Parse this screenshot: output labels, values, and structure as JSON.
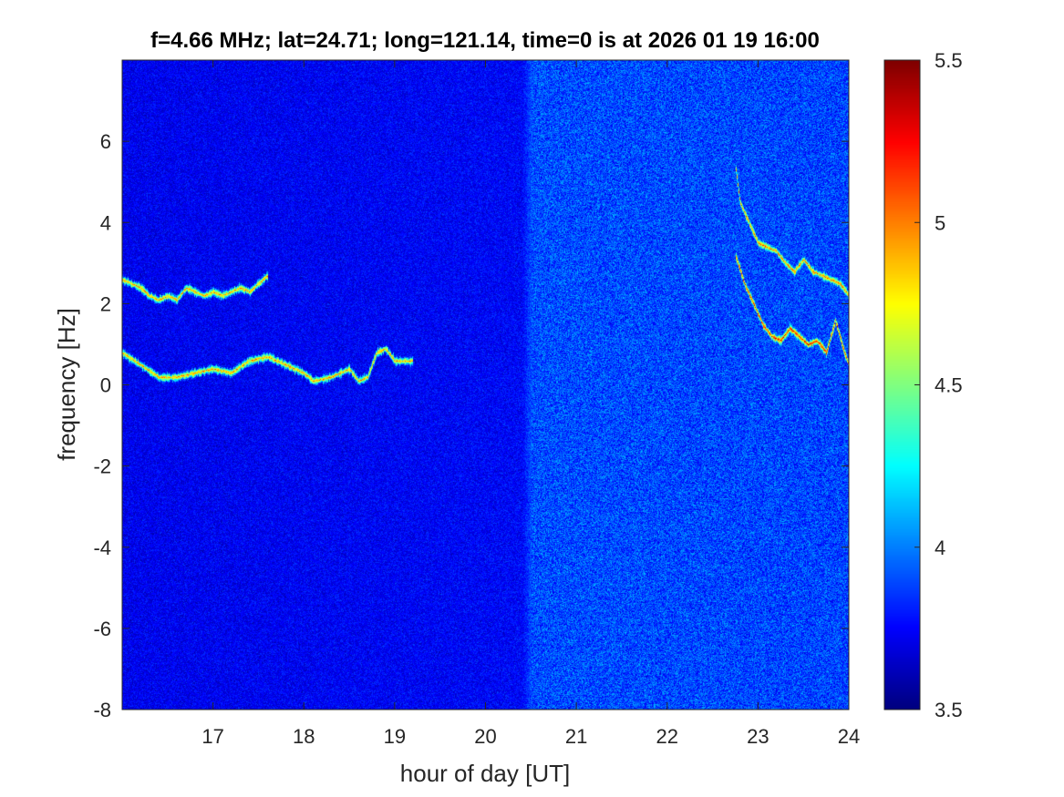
{
  "chart_data": {
    "type": "heatmap",
    "title": "f=4.66 MHz;  lat=24.71; long=121.14, time=0 is at 2026 01 19 16:00",
    "xlabel": "hour of day [UT]",
    "ylabel": "frequency [Hz]",
    "xlim": [
      16.0,
      24.0
    ],
    "ylim": [
      -8.0,
      8.0
    ],
    "x_ticks": [
      17,
      18,
      19,
      20,
      21,
      22,
      23,
      24
    ],
    "y_ticks": [
      -8,
      -6,
      -4,
      -2,
      0,
      2,
      4,
      6
    ],
    "x_tick_labels": [
      "17",
      "18",
      "19",
      "20",
      "21",
      "22",
      "23",
      "24"
    ],
    "y_tick_labels": [
      "-8",
      "-6",
      "-4",
      "-2",
      "0",
      "2",
      "4",
      "6"
    ],
    "colorbar": {
      "colormap": "jet",
      "clim": [
        3.5,
        5.5
      ],
      "ticks": [
        3.5,
        4.0,
        4.5,
        5.0,
        5.5
      ],
      "tick_labels": [
        "3.5",
        "4",
        "4.5",
        "5",
        "5.5"
      ],
      "placement": "right"
    },
    "background_level": {
      "hours": [
        16.0,
        20.4,
        20.5,
        24.0
      ],
      "values": [
        3.72,
        3.75,
        3.9,
        3.88
      ]
    },
    "traces": [
      {
        "hours": [
          16.0,
          16.1,
          16.2,
          16.3,
          16.4,
          16.5,
          16.6,
          16.7,
          16.8,
          16.9,
          17.0,
          17.1,
          17.2,
          17.3,
          17.4,
          17.5,
          17.6
        ],
        "frequency": [
          2.6,
          2.5,
          2.4,
          2.2,
          2.1,
          2.2,
          2.1,
          2.4,
          2.3,
          2.2,
          2.3,
          2.2,
          2.3,
          2.4,
          2.3,
          2.5,
          2.7
        ],
        "value": 4.9
      },
      {
        "hours": [
          16.0,
          16.2,
          16.4,
          16.6,
          16.8,
          17.0,
          17.2,
          17.4,
          17.6,
          17.8,
          18.0,
          18.1,
          18.3,
          18.5,
          18.6,
          18.7,
          18.8,
          18.9,
          19.0,
          19.2
        ],
        "frequency": [
          0.8,
          0.5,
          0.2,
          0.2,
          0.3,
          0.4,
          0.3,
          0.6,
          0.7,
          0.5,
          0.3,
          0.1,
          0.2,
          0.4,
          0.1,
          0.2,
          0.8,
          0.9,
          0.6,
          0.6
        ],
        "value": 4.9
      },
      {
        "hours": [
          22.75,
          22.8,
          22.9,
          23.0,
          23.1,
          23.2,
          23.3,
          23.4,
          23.5,
          23.6,
          23.7,
          23.8,
          23.9,
          24.0
        ],
        "frequency": [
          5.4,
          4.5,
          4.0,
          3.5,
          3.4,
          3.3,
          3.0,
          2.8,
          3.1,
          2.8,
          2.7,
          2.6,
          2.5,
          2.2
        ],
        "value": 5.0
      },
      {
        "hours": [
          22.75,
          22.85,
          22.95,
          23.05,
          23.15,
          23.25,
          23.35,
          23.45,
          23.55,
          23.65,
          23.75,
          23.85,
          23.95,
          24.0
        ],
        "frequency": [
          3.2,
          2.5,
          2.0,
          1.5,
          1.2,
          1.1,
          1.4,
          1.2,
          1.0,
          1.1,
          0.8,
          1.6,
          0.8,
          0.5
        ],
        "value": 5.2
      }
    ]
  }
}
